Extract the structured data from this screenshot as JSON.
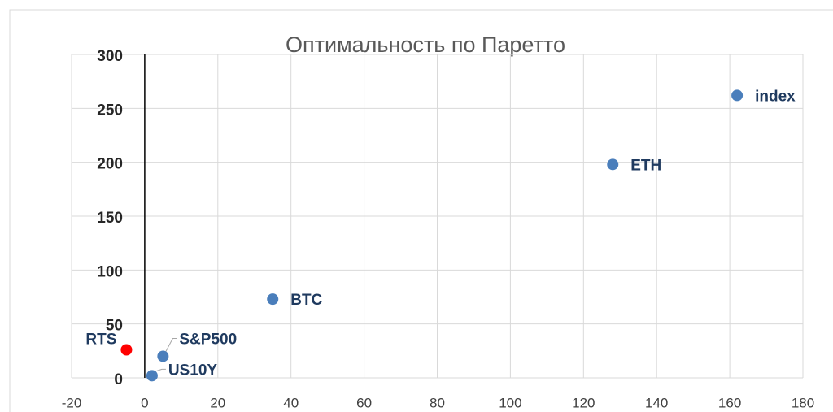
{
  "chart_data": {
    "type": "scatter",
    "title": "Оптимальность по Паретто",
    "x": [
      162,
      128,
      35,
      5,
      2,
      -5
    ],
    "series": [
      {
        "values": [
          262,
          198,
          73,
          20,
          2,
          26
        ]
      }
    ],
    "labels": [
      "index",
      "ETH",
      "BTC",
      "S&P500",
      "US10Y",
      "RTS"
    ],
    "colors": [
      "#4a7ebb",
      "#4a7ebb",
      "#4a7ebb",
      "#4a7ebb",
      "#4a7ebb",
      "#ff0000"
    ],
    "xlim": [
      -20,
      180
    ],
    "xticks": [
      -20,
      0,
      20,
      40,
      60,
      80,
      100,
      120,
      140,
      160,
      180
    ],
    "ylim": [
      0,
      300
    ],
    "yticks": [
      0,
      50,
      100,
      150,
      200,
      250,
      300
    ],
    "grid": true
  }
}
